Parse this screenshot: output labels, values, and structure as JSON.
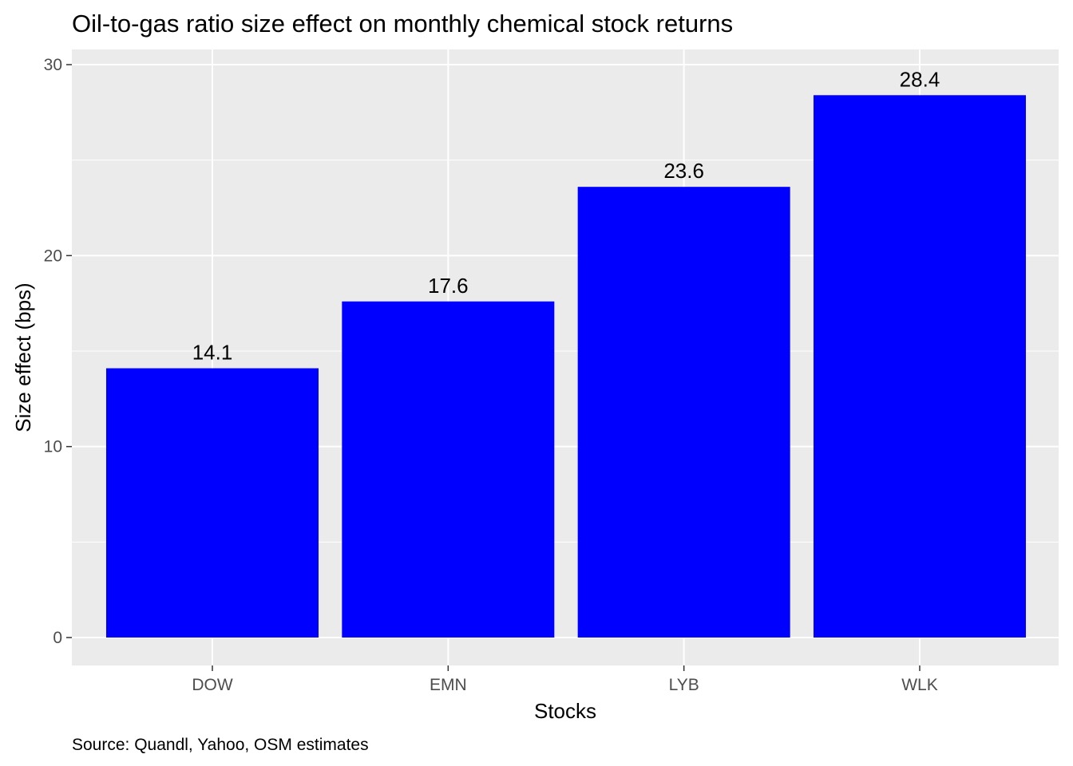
{
  "chart_data": {
    "type": "bar",
    "title": "Oil-to-gas ratio size effect on monthly chemical stock returns",
    "xlabel": "Stocks",
    "ylabel": "Size effect (bps)",
    "caption": "Source: Quandl, Yahoo, OSM estimates",
    "categories": [
      "DOW",
      "EMN",
      "LYB",
      "WLK"
    ],
    "values": [
      14.1,
      17.6,
      23.6,
      28.4
    ],
    "value_labels": [
      "14.1",
      "17.6",
      "23.6",
      "28.4"
    ],
    "y_ticks": [
      0,
      10,
      20,
      30
    ],
    "y_tick_labels": [
      "0",
      "10",
      "20",
      "30"
    ],
    "ylim": [
      -1.42,
      31
    ],
    "grid": true,
    "legend": "none",
    "colors": {
      "bar": "#0000ff",
      "panel_background": "#ebebeb",
      "grid_line": "#ffffff",
      "tick_text": "#4d4d4d"
    }
  }
}
